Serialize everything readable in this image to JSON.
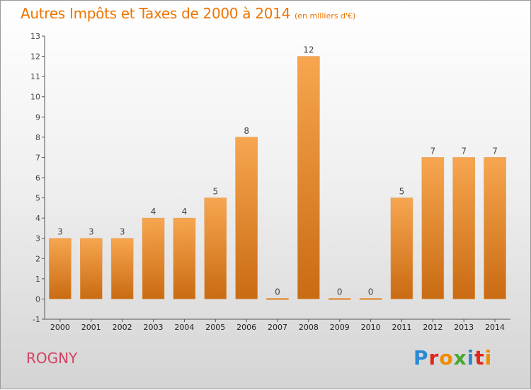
{
  "header": {
    "title": "Autres Impôts et Taxes de 2000 à 2014",
    "unit": "(en milliers d'€)"
  },
  "footer": {
    "commune": "ROGNY",
    "brand": "Proxiti",
    "brand_colors": [
      "#2a8ad4",
      "#e0261b",
      "#f08c00",
      "#4aa832",
      "#2a8ad4",
      "#e0261b",
      "#f08c00"
    ]
  },
  "chart_data": {
    "type": "bar",
    "title": "Autres Impôts et Taxes de 2000 à 2014",
    "subtitle": "(en milliers d'€)",
    "categories": [
      "2000",
      "2001",
      "2002",
      "2003",
      "2004",
      "2005",
      "2006",
      "2007",
      "2008",
      "2009",
      "2010",
      "2011",
      "2012",
      "2013",
      "2014"
    ],
    "values": [
      3,
      3,
      3,
      4,
      4,
      5,
      8,
      0,
      12,
      0,
      0,
      5,
      7,
      7,
      7
    ],
    "data_labels": [
      "3",
      "3",
      "3",
      "4",
      "4",
      "5",
      "8",
      "0",
      "12",
      "0",
      "0",
      "5",
      "7",
      "7",
      "7"
    ],
    "y_ticks": [
      "-1",
      "0",
      "1",
      "2",
      "3",
      "4",
      "5",
      "6",
      "7",
      "8",
      "9",
      "10",
      "11",
      "12",
      "13"
    ],
    "ylim": [
      -1,
      13
    ],
    "grid": false,
    "colors": {
      "bar_top": "#f7a650",
      "bar_bottom": "#c96b12",
      "bar_stroke": "#e0a060",
      "axis": "#555555",
      "label": "#444444"
    }
  }
}
